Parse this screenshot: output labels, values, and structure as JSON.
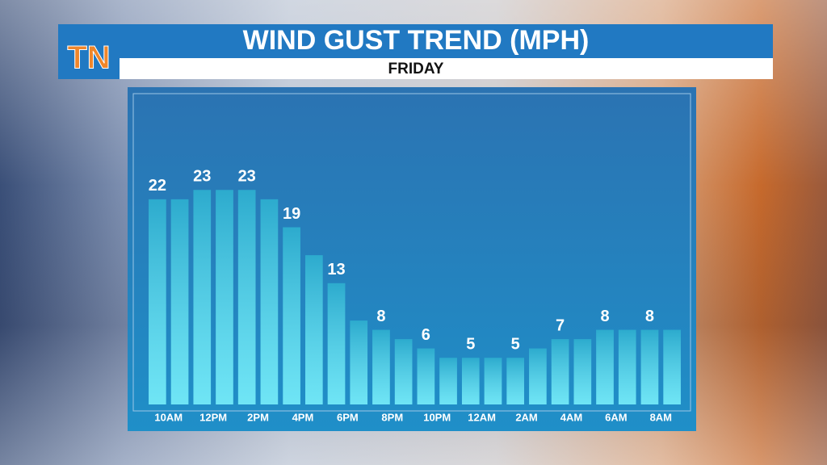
{
  "chart_data": {
    "type": "bar",
    "title": "WIND GUST TREND (MPH)",
    "subtitle": "FRIDAY",
    "logo": "TN",
    "categories": [
      "10AM",
      null,
      "12PM",
      null,
      "2PM",
      null,
      "4PM",
      null,
      "6PM",
      null,
      "8PM",
      null,
      "10PM",
      null,
      "12AM",
      null,
      "2AM",
      null,
      "4AM",
      null,
      "6AM",
      null,
      "8AM",
      null
    ],
    "values": [
      22,
      22,
      23,
      23,
      23,
      22,
      19,
      16,
      13,
      9,
      8,
      7,
      6,
      5,
      5,
      5,
      5,
      6,
      7,
      7,
      8,
      8,
      8,
      8
    ],
    "value_labels": [
      "22",
      null,
      "23",
      null,
      "23",
      null,
      "19",
      null,
      "13",
      null,
      "8",
      null,
      "6",
      null,
      "5",
      null,
      "5",
      null,
      "7",
      null,
      "8",
      null,
      "8",
      null
    ],
    "color": "#3fdcf2"
  }
}
